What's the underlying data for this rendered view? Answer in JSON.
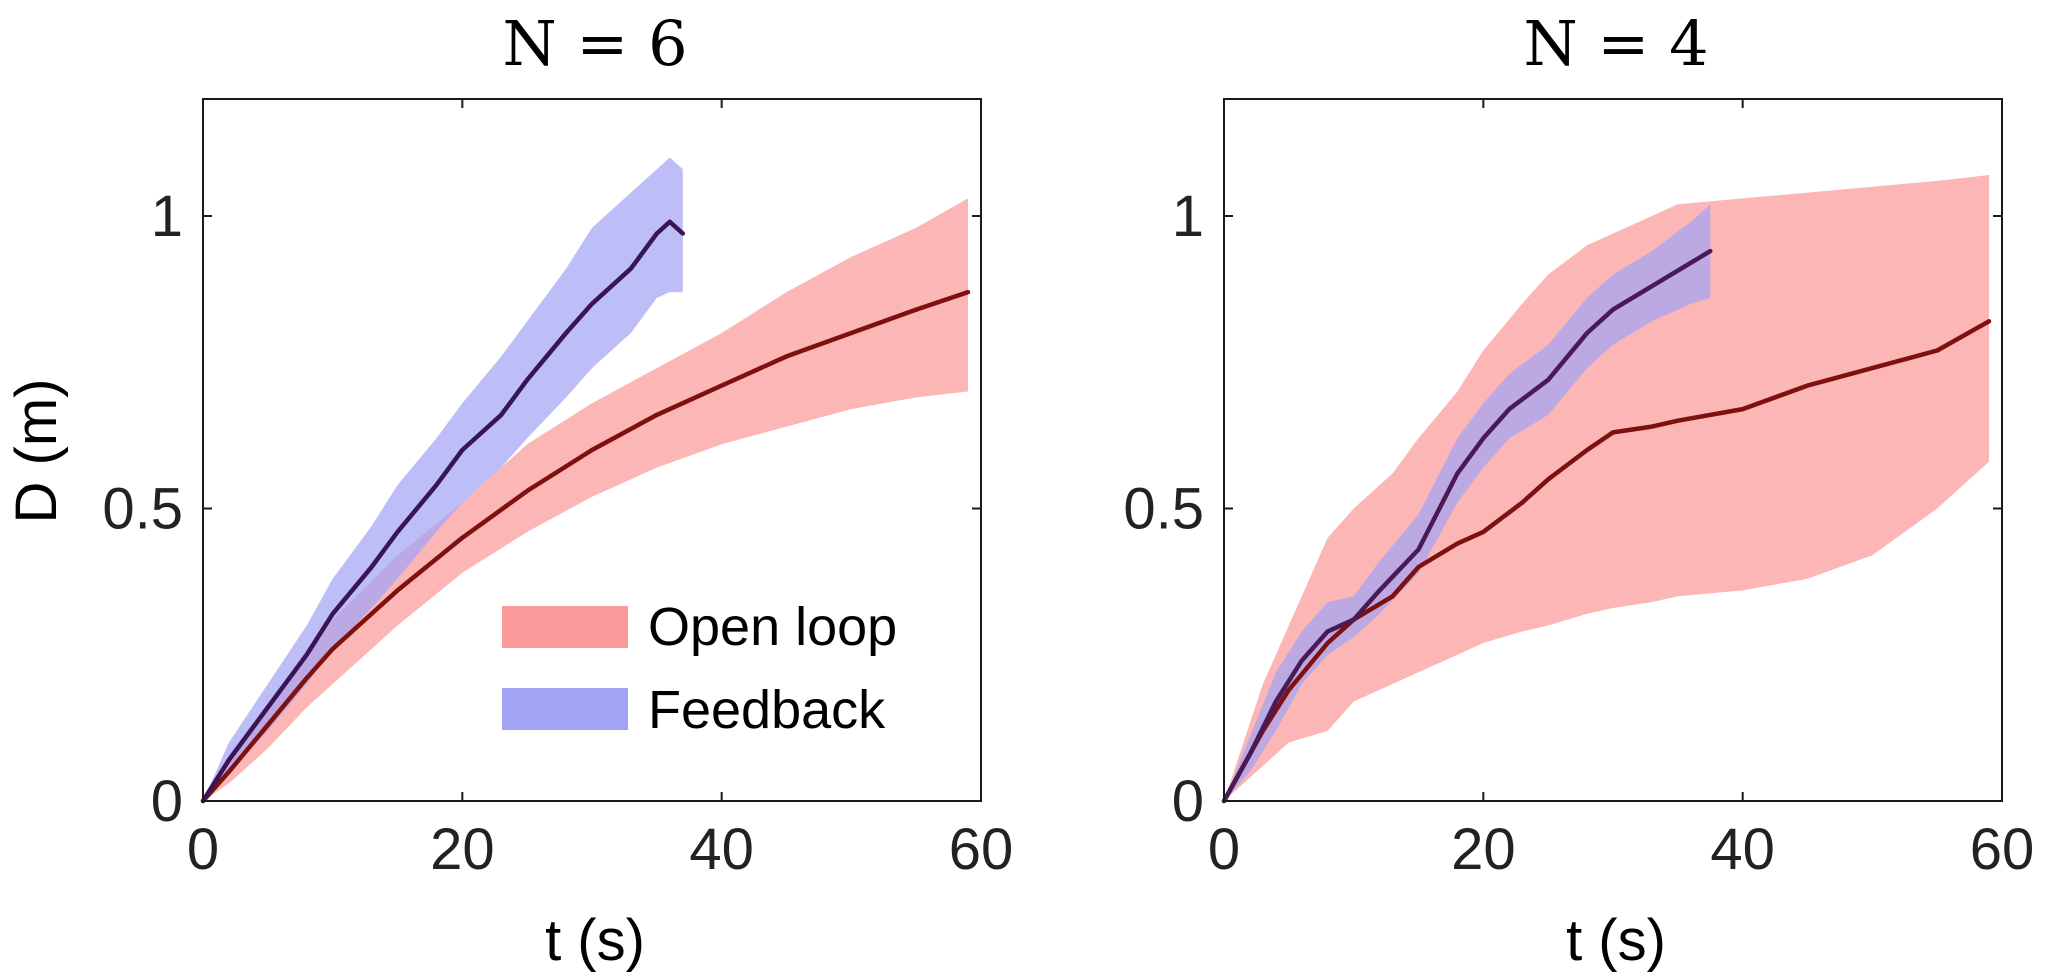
{
  "figure": {
    "ylabel": "D (m)",
    "legend": {
      "items": [
        {
          "label": "Open loop",
          "color": "#fb9a9a"
        },
        {
          "label": "Feedback",
          "color": "#a3a3f5"
        }
      ]
    }
  },
  "chart_data": [
    {
      "type": "line",
      "title": "N = 6",
      "xlabel": "t (s)",
      "ylabel": "D (m)",
      "xlim": [
        0,
        60
      ],
      "ylim": [
        0,
        1.2
      ],
      "xticks": [
        "0",
        "20",
        "40",
        "60"
      ],
      "yticks": [
        "0",
        "0.5",
        "1"
      ],
      "grid": false,
      "legend_position": "bottom-right",
      "series": [
        {
          "name": "Open loop",
          "line_color": "#7f1010",
          "band_color": "#fb9a9a",
          "x": [
            0,
            2,
            5,
            8,
            10,
            15,
            20,
            25,
            30,
            35,
            40,
            45,
            50,
            55,
            59
          ],
          "mean": [
            0,
            0.05,
            0.13,
            0.21,
            0.26,
            0.36,
            0.45,
            0.53,
            0.6,
            0.66,
            0.71,
            0.76,
            0.8,
            0.84,
            0.87
          ],
          "lower": [
            0,
            0.03,
            0.09,
            0.16,
            0.2,
            0.3,
            0.39,
            0.46,
            0.52,
            0.57,
            0.61,
            0.64,
            0.67,
            0.69,
            0.7
          ],
          "upper": [
            0,
            0.07,
            0.16,
            0.26,
            0.31,
            0.42,
            0.51,
            0.61,
            0.68,
            0.74,
            0.8,
            0.87,
            0.93,
            0.98,
            1.03
          ]
        },
        {
          "name": "Feedback",
          "line_color": "#3a1555",
          "band_color": "#a3a3f5",
          "x": [
            0,
            2,
            5,
            8,
            10,
            13,
            15,
            18,
            20,
            23,
            25,
            28,
            30,
            33,
            35,
            36,
            37
          ],
          "mean": [
            0,
            0.07,
            0.16,
            0.25,
            0.32,
            0.4,
            0.46,
            0.54,
            0.6,
            0.66,
            0.72,
            0.8,
            0.85,
            0.91,
            0.97,
            0.99,
            0.97
          ],
          "lower": [
            0,
            0.05,
            0.12,
            0.2,
            0.26,
            0.33,
            0.38,
            0.46,
            0.51,
            0.57,
            0.62,
            0.69,
            0.74,
            0.8,
            0.86,
            0.87,
            0.87
          ],
          "upper": [
            0,
            0.1,
            0.2,
            0.3,
            0.38,
            0.47,
            0.54,
            0.62,
            0.68,
            0.76,
            0.82,
            0.91,
            0.98,
            1.04,
            1.08,
            1.1,
            1.08
          ]
        }
      ]
    },
    {
      "type": "line",
      "title": "N = 4",
      "xlabel": "t (s)",
      "ylabel": "",
      "xlim": [
        0,
        60
      ],
      "ylim": [
        0,
        1.2
      ],
      "xticks": [
        "0",
        "20",
        "40",
        "60"
      ],
      "yticks": [
        "0",
        "0.5",
        "1"
      ],
      "grid": false,
      "series": [
        {
          "name": "Open loop",
          "line_color": "#7f1010",
          "band_color": "#fb9a9a",
          "x": [
            0,
            3,
            5,
            8,
            10,
            13,
            15,
            18,
            20,
            23,
            25,
            28,
            30,
            33,
            35,
            40,
            45,
            50,
            55,
            59
          ],
          "mean": [
            0,
            0.12,
            0.19,
            0.27,
            0.31,
            0.35,
            0.4,
            0.44,
            0.46,
            0.51,
            0.55,
            0.6,
            0.63,
            0.64,
            0.65,
            0.67,
            0.71,
            0.74,
            0.77,
            0.82
          ],
          "lower": [
            0,
            0.06,
            0.1,
            0.12,
            0.17,
            0.2,
            0.22,
            0.25,
            0.27,
            0.29,
            0.3,
            0.32,
            0.33,
            0.34,
            0.35,
            0.36,
            0.38,
            0.42,
            0.5,
            0.58
          ],
          "upper": [
            0,
            0.2,
            0.3,
            0.45,
            0.5,
            0.56,
            0.62,
            0.7,
            0.77,
            0.85,
            0.9,
            0.95,
            0.97,
            1.0,
            1.02,
            1.03,
            1.04,
            1.05,
            1.06,
            1.07
          ]
        },
        {
          "name": "Feedback",
          "line_color": "#4a1a55",
          "band_color": "#a3a3f5",
          "x": [
            0,
            2,
            4,
            6,
            8,
            10,
            12,
            15,
            18,
            20,
            22,
            25,
            28,
            30,
            33,
            36,
            37.5
          ],
          "mean": [
            0,
            0.08,
            0.17,
            0.24,
            0.29,
            0.31,
            0.36,
            0.43,
            0.56,
            0.62,
            0.67,
            0.72,
            0.8,
            0.84,
            0.88,
            0.92,
            0.94
          ],
          "lower": [
            0,
            0.05,
            0.12,
            0.2,
            0.25,
            0.28,
            0.32,
            0.39,
            0.51,
            0.57,
            0.62,
            0.66,
            0.74,
            0.78,
            0.82,
            0.85,
            0.86
          ],
          "upper": [
            0,
            0.11,
            0.22,
            0.29,
            0.34,
            0.35,
            0.41,
            0.49,
            0.62,
            0.68,
            0.73,
            0.78,
            0.86,
            0.9,
            0.94,
            0.99,
            1.02
          ]
        }
      ]
    }
  ]
}
